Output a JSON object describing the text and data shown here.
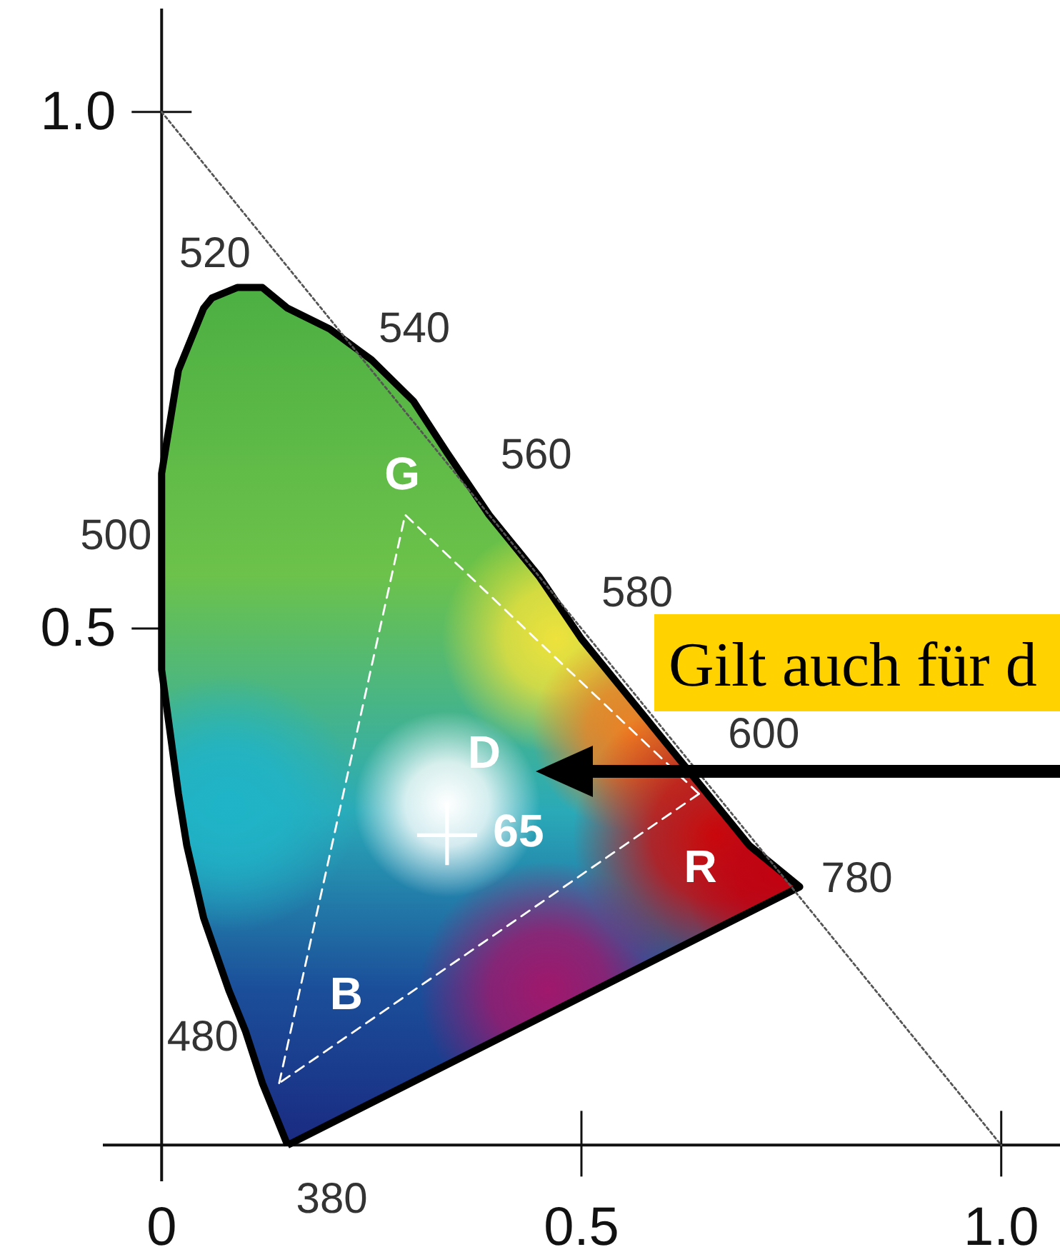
{
  "chart_data": {
    "type": "line",
    "xlim": [
      -0.07,
      1.07
    ],
    "ylim": [
      -0.035,
      1.1
    ],
    "xticks": [
      0,
      0.5,
      {
        "value": 1,
        "label": "1.0"
      }
    ],
    "yticks": [
      0.5,
      {
        "value": 1,
        "label": "1.0"
      }
    ],
    "series": [
      {
        "type": "area",
        "color": "#000000",
        "line_style": "solid",
        "x": [
          0.15,
          0.12,
          0.1,
          0.08,
          0.05,
          0.03,
          0.02,
          0.01,
          0,
          0,
          0,
          0,
          0.01,
          0.02,
          0.05,
          0.06,
          0.09,
          0.12,
          0.15,
          0.2,
          0.25,
          0.3,
          0.34,
          0.39,
          0.42,
          0.45,
          0.5,
          0.54,
          0.58,
          0.61,
          0.65,
          0.7,
          0.76,
          0.15
        ],
        "values": [
          0,
          0.06,
          0.11,
          0.15,
          0.22,
          0.29,
          0.34,
          0.4,
          0.46,
          0.52,
          0.59,
          0.65,
          0.7,
          0.75,
          0.81,
          0.82,
          0.83,
          0.83,
          0.81,
          0.79,
          0.76,
          0.72,
          0.67,
          0.61,
          0.58,
          0.55,
          0.49,
          0.45,
          0.41,
          0.38,
          0.34,
          0.29,
          0.25,
          0
        ]
      },
      {
        "color": "#ffffff",
        "line_style": "dashed",
        "x": [
          0.14,
          0.29,
          0.64
        ],
        "values": [
          0.06,
          0.61,
          0.34
        ]
      },
      {
        "color": "#ffffff",
        "line_style": "dashed",
        "x": [
          0.64,
          0.14
        ],
        "values": [
          0.34,
          0.06
        ]
      },
      {
        "color": "#555555",
        "line_style": "dotted",
        "x": [
          0,
          1
        ],
        "values": [
          1,
          0
        ]
      },
      {
        "type": "scatter",
        "color": "#ffffff",
        "marker": "cross",
        "x": [
          0.34
        ],
        "values": [
          0.3
        ]
      }
    ],
    "annotations": [
      {
        "text": "520",
        "x": 0.06,
        "y": 0.82
      },
      {
        "text": "540",
        "x": 0.25,
        "y": 0.76
      },
      {
        "text": "560",
        "x": 0.39,
        "y": 0.61
      },
      {
        "text": "580",
        "x": 0.5,
        "y": 0.49
      },
      {
        "text": "600",
        "x": 0.61,
        "y": 0.38
      },
      {
        "text": "780",
        "x": 0.76,
        "y": 0.25
      },
      {
        "text": "500",
        "x": 0,
        "y": 0.59
      },
      {
        "text": "480",
        "x": 0.1,
        "y": 0.11
      },
      {
        "text": "380",
        "x": 0.15,
        "y": 0
      },
      {
        "text": "G",
        "x": 0.29,
        "y": 0.61
      },
      {
        "text": "R",
        "x": 0.64,
        "y": 0.34
      },
      {
        "text": "B",
        "x": 0.14,
        "y": 0.06
      },
      {
        "text": "D",
        "x": 0.34,
        "y": 0.3
      },
      {
        "text": "65",
        "x": 0.34,
        "y": 0.3
      },
      "Gilt auch für d"
    ]
  }
}
